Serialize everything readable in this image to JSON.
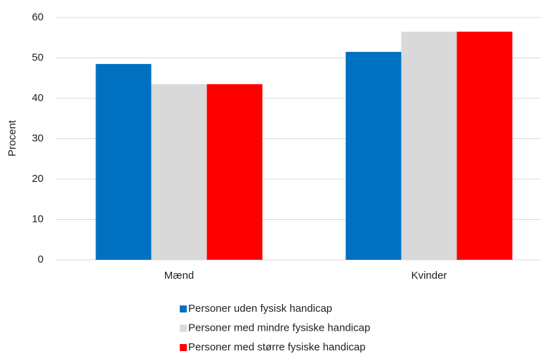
{
  "chart_data": {
    "type": "bar",
    "y_label": "Procent",
    "categories": [
      "Mænd",
      "Kvinder"
    ],
    "series": [
      {
        "name": "Personer uden fysisk handicap",
        "color": "#0070c0",
        "values": [
          48.5,
          51.5
        ]
      },
      {
        "name": "Personer med mindre fysiske handicap",
        "color": "#d9d9d9",
        "values": [
          43.5,
          56.5
        ]
      },
      {
        "name": "Personer med større fysiske handicap",
        "color": "#ff0000",
        "values": [
          43.5,
          56.5
        ]
      }
    ],
    "ylim": [
      0,
      60
    ],
    "yticks": [
      0,
      10,
      20,
      30,
      40,
      50,
      60
    ],
    "grid": true,
    "legend": "bottom"
  }
}
